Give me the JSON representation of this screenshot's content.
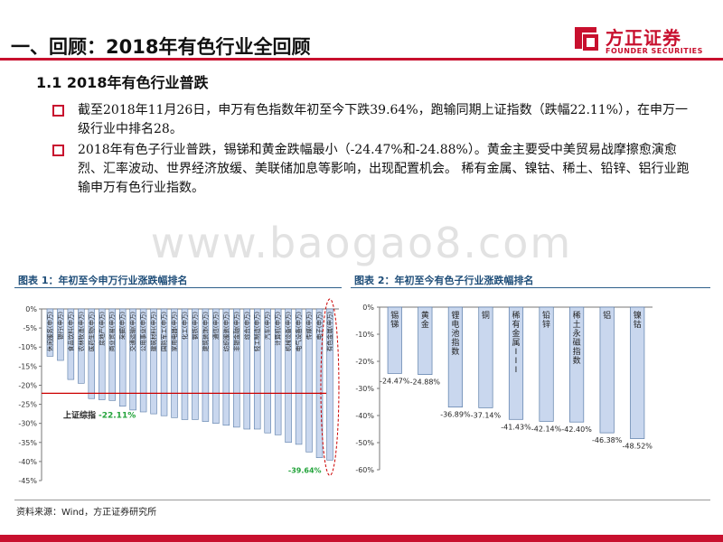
{
  "page": {
    "title": "一、回顾：2018年有色行业全回顾",
    "subtitle": "1.1 2018年有色行业普跌",
    "bullets": [
      "截至2018年11月26日，申万有色指数年初至今下跌39.64%，跑输同期上证指数（跌幅22.11%），在申万一级行业中排名28。",
      "2018年有色子行业普跌，锡锑和黄金跌幅最小（-24.47%和-24.88%）。黄金主要受中美贸易战摩擦愈演愈烈、汇率波动、世界经济放缓、美联储加息等影响，出现配置机会。 稀有金属、镍钴、稀土、铅锌、铝行业跑输申万有色行业指数。"
    ],
    "watermark": "www.baogao8.com",
    "source": "资料来源：Wind，方正证券研究所",
    "accent_color": "#c8102e",
    "logo": {
      "cn": "方正证券",
      "en": "FOUNDER SECURITIES"
    }
  },
  "chart_data": [
    {
      "type": "bar",
      "title": "图表 1：年初至今申万行业涨跌幅排名",
      "categories": [
        "休闲服务(申万)",
        "银行(申万)",
        "食品饮料(申万)",
        "农林牧渔(申万)",
        "医药生物(申万)",
        "房地产(申万)",
        "商业贸易(申万)",
        "采掘(申万)",
        "交通运输(申万)",
        "公用事业(申万)",
        "建筑材料(申万)",
        "国防军工(申万)",
        "家用电器(申万)",
        "化工(申万)",
        "钢铁(申万)",
        "建筑装饰(申万)",
        "通信(申万)",
        "纺织服装(申万)",
        "非银金融(申万)",
        "综合(申万)",
        "轻工制造(申万)",
        "汽车(申万)",
        "计算机(申万)",
        "机械设备(申万)",
        "电气设备(申万)",
        "传媒(申万)",
        "电子(申万)",
        "有色金属(申万)"
      ],
      "values": [
        -12.4,
        -13.5,
        -18.5,
        -19.5,
        -23.5,
        -23.8,
        -24.0,
        -25.5,
        -26.5,
        -27.0,
        -27.5,
        -28.0,
        -28.5,
        -29.0,
        -29.0,
        -29.5,
        -30.0,
        -30.5,
        -31.0,
        -31.5,
        -31.5,
        -32.5,
        -33.0,
        -35.0,
        -35.5,
        -37.5,
        -39.0,
        -39.64
      ],
      "ylim": [
        -45,
        0
      ],
      "yticks": [
        "0%",
        "-5%",
        "-10%",
        "-15%",
        "-20%",
        "-25%",
        "-30%",
        "-35%",
        "-40%",
        "-45%"
      ],
      "reference_line": {
        "label": "上证综指",
        "value_label": "-22.11%",
        "value": -22.11
      },
      "highlight_label": "-39.64%",
      "bar_color": "#c9d7ee",
      "ref_color": "#cc0000",
      "label_color": "#22a33a"
    },
    {
      "type": "bar",
      "title": "图表 2：年初至今有色子行业涨跌幅排名",
      "categories": [
        "锡锑",
        "黄金",
        "锂电池指数",
        "铜",
        "稀有金属III",
        "铅锌",
        "稀土永磁指数",
        "铝",
        "镍钴"
      ],
      "values": [
        -24.47,
        -24.88,
        -36.89,
        -37.14,
        -41.43,
        -42.14,
        -42.4,
        -46.38,
        -48.52
      ],
      "value_labels": [
        "-24.47%",
        "-24.88%",
        "-36.89%",
        "-37.14%",
        "-41.43%",
        "-42.14%",
        "-42.40%",
        "-46.38%",
        "-48.52%"
      ],
      "ylim": [
        -60,
        0
      ],
      "yticks": [
        "0%",
        "-10%",
        "-20%",
        "-30%",
        "-40%",
        "-50%",
        "-60%"
      ],
      "bar_color": "#c9d7ee"
    }
  ]
}
